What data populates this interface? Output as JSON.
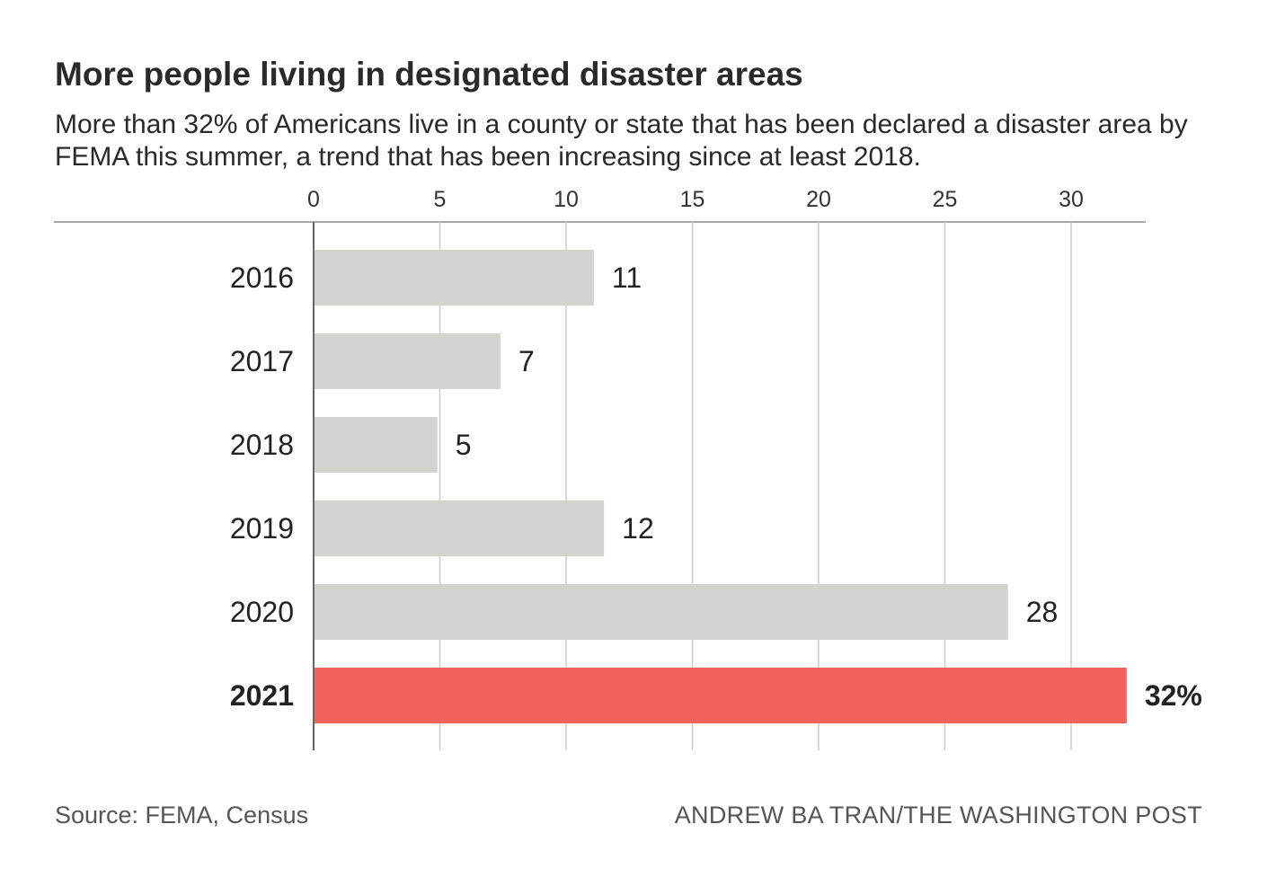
{
  "header": {
    "title": "More people living in designated disaster areas",
    "subtitle": "More than 32% of Americans live in a county or state that has been declared a disaster area by FEMA this summer, a trend that has been increasing since at least 2018."
  },
  "footer": {
    "source": "Source: FEMA, Census",
    "credit": "ANDREW BA TRAN/THE WASHINGTON POST"
  },
  "colors": {
    "bar": "#d3d3cf",
    "highlight": "#ef635b",
    "grid": "#cccccc",
    "axis": "#666666"
  },
  "chart_data": {
    "type": "bar",
    "orientation": "horizontal",
    "title": "More people living in designated disaster areas",
    "categories": [
      "2016",
      "2017",
      "2018",
      "2019",
      "2020",
      "2021"
    ],
    "values": [
      11.1,
      7.4,
      4.9,
      11.5,
      27.5,
      32.2
    ],
    "value_labels": [
      "11",
      "7",
      "5",
      "12",
      "28",
      "32%"
    ],
    "highlight_index": 5,
    "xlim": [
      0,
      32.2
    ],
    "xticks": [
      0,
      5,
      10,
      15,
      20,
      25,
      30
    ],
    "tick_labels": [
      "0",
      "5",
      "10",
      "15",
      "20",
      "25",
      "30"
    ],
    "xlabel": "",
    "ylabel": "",
    "grid": true
  }
}
